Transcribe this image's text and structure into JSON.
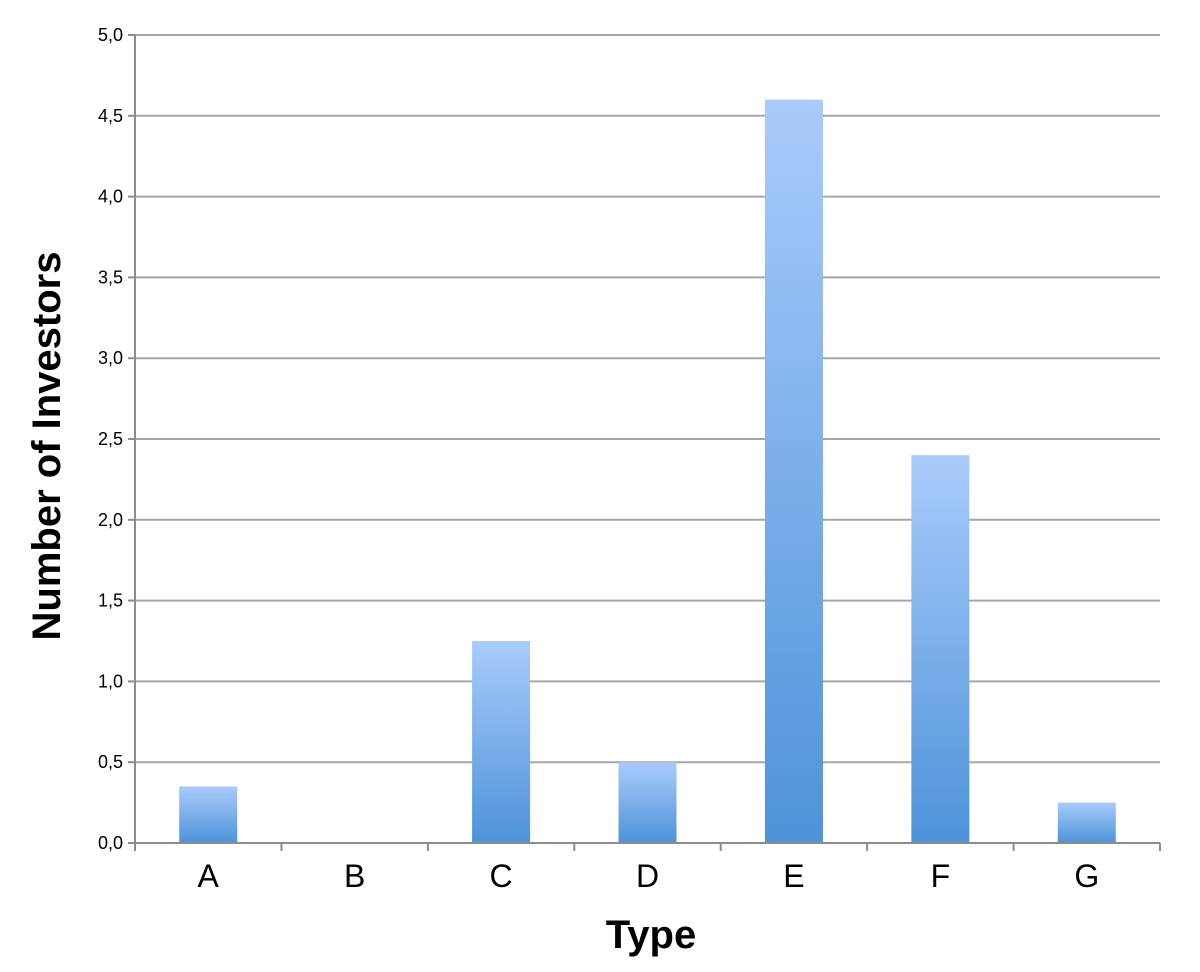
{
  "chart_data": {
    "type": "bar",
    "title": "",
    "xlabel": "Type",
    "ylabel": "Number of Investors",
    "categories": [
      "A",
      "B",
      "C",
      "D",
      "E",
      "F",
      "G"
    ],
    "values": [
      0.35,
      0,
      1.25,
      0.5,
      4.6,
      2.4,
      0.25
    ],
    "ylim": [
      0,
      5
    ],
    "yticks": [
      0,
      0.5,
      1,
      1.5,
      2,
      2.5,
      3,
      3.5,
      4,
      4.5,
      5
    ],
    "ytick_labels": [
      "0,0",
      "0,5",
      "1,0",
      "1,5",
      "2,0",
      "2,5",
      "3,0",
      "3,5",
      "4,0",
      "4,5",
      "5,0"
    ],
    "grid": true,
    "legend": "none",
    "colors": {
      "bar_top": "#aacbfb",
      "bar_bottom": "#4d93d9",
      "grid": "#a6a6a6",
      "axis": "#8c8c8c"
    }
  }
}
